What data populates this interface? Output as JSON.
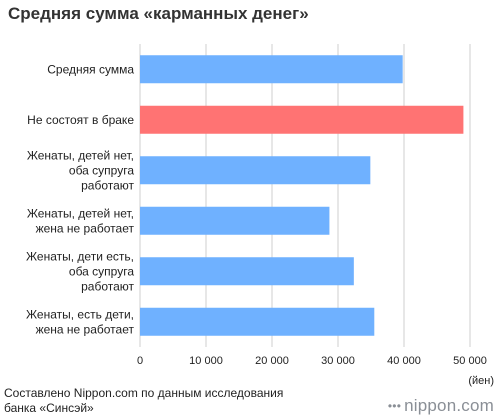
{
  "chart_data": {
    "type": "bar",
    "orientation": "horizontal",
    "title": "Средняя сумма «карманных денег»",
    "categories": [
      [
        "Средняя сумма"
      ],
      [
        "Не состоят в браке"
      ],
      [
        "Женаты, детей нет,",
        "оба супруга",
        "работают"
      ],
      [
        "Женаты, детей нет,",
        "жена не работает"
      ],
      [
        "Женаты, дети есть,",
        "оба супруга",
        "работают"
      ],
      [
        "Женаты, есть дети,",
        "жена не работает"
      ]
    ],
    "values": [
      39800,
      49000,
      34900,
      28700,
      32400,
      35500
    ],
    "bar_colors": [
      "#6fb1ff",
      "#ff7373",
      "#6fb1ff",
      "#6fb1ff",
      "#6fb1ff",
      "#6fb1ff"
    ],
    "xlim": [
      0,
      50000
    ],
    "x_ticks": [
      0,
      10000,
      20000,
      30000,
      40000,
      50000
    ],
    "x_tick_labels": [
      "0",
      "10 000",
      "20 000",
      "30 000",
      "40 000",
      "50 000"
    ],
    "xlabel": "(йен)",
    "grid": true
  },
  "footer": {
    "source_line1": "Составлено Nippon.com по данным исследования",
    "source_line2": "банка «Синсэй»",
    "brand": "nippon.com",
    "brand_dots": "•••"
  }
}
